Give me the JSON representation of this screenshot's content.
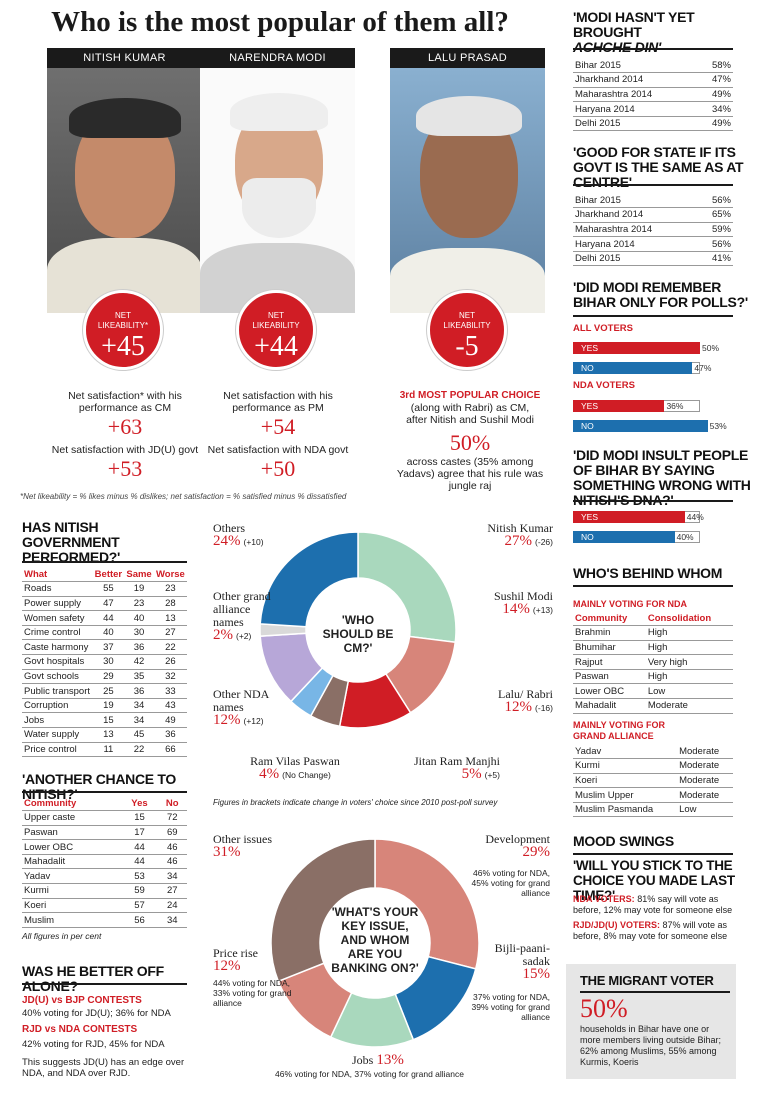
{
  "title": "Who is the most popular of them all?",
  "leaders": [
    {
      "name": "NITISH KUMAR",
      "like_label_1": "NET",
      "like_label_2": "LIKEABILITY*",
      "like_value": "+45",
      "sat1_text": "Net satisfaction* with his performance as CM",
      "sat1_value": "+63",
      "sat2_text": "Net satisfaction with JD(U) govt",
      "sat2_value": "+53"
    },
    {
      "name": "NARENDRA MODI",
      "like_label_1": "NET",
      "like_label_2": "LIKEABILITY",
      "like_value": "+44",
      "sat1_text": "Net satisfaction with his performance as PM",
      "sat1_value": "+54",
      "sat2_text": "Net satisfaction with NDA govt",
      "sat2_value": "+50"
    },
    {
      "name": "LALU PRASAD",
      "like_label_1": "NET",
      "like_label_2": "LIKEABILITY",
      "like_value": "-5",
      "choice_red": "3rd MOST POPULAR CHOICE",
      "choice_text": "(along with Rabri) as CM, after Nitish and Sushil Modi",
      "pct": "50%",
      "pct_text": "across castes (35% among Yadavs) agree that his rule was jungle raj"
    }
  ],
  "footnote": "*Net likeability = % likes minus % dislikes; net satisfaction = % satisfied minus % dissatisfied",
  "performed": {
    "title": "HAS NITISH GOVERNMENT PERFORMED?'",
    "headers": [
      "What",
      "Better",
      "Same",
      "Worse"
    ],
    "rows": [
      [
        "Roads",
        "55",
        "19",
        "23"
      ],
      [
        "Power supply",
        "47",
        "23",
        "28"
      ],
      [
        "Women safety",
        "44",
        "40",
        "13"
      ],
      [
        "Crime control",
        "40",
        "30",
        "27"
      ],
      [
        "Caste harmony",
        "37",
        "36",
        "22"
      ],
      [
        "Govt hospitals",
        "30",
        "42",
        "26"
      ],
      [
        "Govt schools",
        "29",
        "35",
        "32"
      ],
      [
        "Public transport",
        "25",
        "36",
        "33"
      ],
      [
        "Corruption",
        "19",
        "34",
        "43"
      ],
      [
        "Jobs",
        "15",
        "34",
        "49"
      ],
      [
        "Water supply",
        "13",
        "45",
        "36"
      ],
      [
        "Price control",
        "11",
        "22",
        "66"
      ]
    ]
  },
  "another_chance": {
    "title": "'ANOTHER CHANCE TO NITISH?'",
    "headers": [
      "Community",
      "Yes",
      "No"
    ],
    "rows": [
      [
        "Upper caste",
        "15",
        "72"
      ],
      [
        "Paswan",
        "17",
        "69"
      ],
      [
        "Lower OBC",
        "44",
        "46"
      ],
      [
        "Mahadalit",
        "44",
        "46"
      ],
      [
        "Yadav",
        "53",
        "34"
      ],
      [
        "Kurmi",
        "59",
        "27"
      ],
      [
        "Koeri",
        "57",
        "24"
      ],
      [
        "Muslim",
        "56",
        "34"
      ]
    ],
    "note": "All figures in per cent"
  },
  "better_alone": {
    "title": "WAS HE BETTER OFF ALONE?",
    "c1_label": "JD(U) vs BJP CONTESTS",
    "c1_text": "40% voting for JD(U); 36% for NDA",
    "c2_label": "RJD vs NDA CONTESTS",
    "c2_text": "42% voting for RJD, 45% for NDA",
    "conclusion": "This suggests JD(U) has an edge over NDA, and NDA over RJD."
  },
  "cm_note": "Figures in brackets indicate change in voters' choice since 2010 post-poll survey",
  "issue_labels": {
    "other": {
      "name": "Other issues",
      "pct": "31%"
    },
    "dev": {
      "name": "Development",
      "pct": "29%",
      "note": "46% voting for NDA, 45% voting for grand alliance"
    },
    "bijli1": "Bijli-paani-",
    "bijli2": "sadak",
    "bijli_pct": "15%",
    "bijli_note": "37% voting for NDA, 39% voting for grand alliance",
    "jobs": "Jobs",
    "jobs_pct": "13%",
    "jobs_note": "46% voting for NDA, 37% voting for grand alliance",
    "price": "Price rise",
    "price_pct": "12%",
    "price_note": "44% voting for NDA, 33% voting for grand alliance"
  },
  "chart_data": [
    {
      "type": "pie",
      "title": "'WHO SHOULD BE CM?'",
      "slices": [
        {
          "label": "Nitish Kumar",
          "value": 27,
          "change": "(-26)",
          "color": "#a9d8bd"
        },
        {
          "label": "Sushil Modi",
          "value": 14,
          "change": "(+13)",
          "color": "#d7857a"
        },
        {
          "label": "Lalu/ Rabri",
          "value": 12,
          "change": "(-16)",
          "color": "#d01d25"
        },
        {
          "label": "Jitan Ram Manjhi",
          "value": 5,
          "change": "(+5)",
          "color": "#8a6f66"
        },
        {
          "label": "Ram Vilas Paswan",
          "value": 4,
          "change": "(No Change)",
          "color": "#78b6e6"
        },
        {
          "label": "Other NDA names",
          "value": 12,
          "change": "(+12)",
          "color": "#b7a7d8"
        },
        {
          "label": "Other grand alliance names",
          "value": 2,
          "change": "(+2)",
          "color": "#d9d9d9"
        },
        {
          "label": "Others",
          "value": 24,
          "change": "(+10)",
          "color": "#1d6fae"
        }
      ]
    },
    {
      "type": "pie",
      "title": "'WHAT'S YOUR KEY ISSUE, AND WHOM ARE YOU BANKING ON?'",
      "slices": [
        {
          "label": "Development",
          "value": 29,
          "color": "#d7857a"
        },
        {
          "label": "Bijli-paani-sadak",
          "value": 15,
          "color": "#1d6fae"
        },
        {
          "label": "Jobs",
          "value": 13,
          "color": "#a9d8bd"
        },
        {
          "label": "Price rise",
          "value": 12,
          "color": "#d7857a"
        },
        {
          "label": "Other issues",
          "value": 31,
          "color": "#8a6f66"
        }
      ]
    },
    {
      "type": "bar",
      "title": "'DID MODI REMEMBER BIHAR ONLY FOR POLLS?'",
      "groups": [
        {
          "label": "ALL VOTERS",
          "bars": [
            {
              "label": "YES",
              "value": 50,
              "color": "#d01d25"
            },
            {
              "label": "NO",
              "value": 47,
              "color": "#1d6fae"
            }
          ]
        },
        {
          "label": "NDA VOTERS",
          "bars": [
            {
              "label": "YES",
              "value": 36,
              "color": "#d01d25"
            },
            {
              "label": "NO",
              "value": 53,
              "color": "#1d6fae"
            }
          ]
        }
      ]
    },
    {
      "type": "bar",
      "title": "'DID MODI INSULT PEOPLE OF BIHAR BY SAYING SOMETHING WRONG WITH NITISH'S DNA?'",
      "groups": [
        {
          "label": "",
          "bars": [
            {
              "label": "YES",
              "value": 44,
              "color": "#d01d25"
            },
            {
              "label": "NO",
              "value": 40,
              "color": "#1d6fae"
            }
          ]
        }
      ]
    }
  ],
  "achche": {
    "title1": "'MODI HASN'T YET BROUGHT",
    "title2": "ACHCHE DIN'",
    "rows": [
      [
        "Bihar 2015",
        "58%"
      ],
      [
        "Jharkhand 2014",
        "47%"
      ],
      [
        "Maharashtra 2014",
        "49%"
      ],
      [
        "Haryana 2014",
        "34%"
      ],
      [
        "Delhi 2015",
        "49%"
      ]
    ]
  },
  "good_state": {
    "title": "'GOOD FOR STATE IF ITS GOVT IS THE SAME AS AT CENTRE'",
    "rows": [
      [
        "Bihar 2015",
        "56%"
      ],
      [
        "Jharkhand 2014",
        "65%"
      ],
      [
        "Maharashtra 2014",
        "59%"
      ],
      [
        "Haryana 2014",
        "56%"
      ],
      [
        "Delhi 2015",
        "41%"
      ]
    ]
  },
  "behind": {
    "title": "WHO'S BEHIND WHOM",
    "nda_label": "MAINLY VOTING FOR NDA",
    "headers": [
      "Community",
      "Consolidation"
    ],
    "nda_rows": [
      [
        "Brahmin",
        "High"
      ],
      [
        "Bhumihar",
        "High"
      ],
      [
        "Rajput",
        "Very high"
      ],
      [
        "Paswan",
        "High"
      ],
      [
        "Lower OBC",
        "Low"
      ],
      [
        "Mahadalit",
        "Moderate"
      ]
    ],
    "ga_label1": "MAINLY VOTING FOR",
    "ga_label2": "GRAND ALLIANCE",
    "ga_rows": [
      [
        "Yadav",
        "Moderate"
      ],
      [
        "Kurmi",
        "Moderate"
      ],
      [
        "Koeri",
        "Moderate"
      ],
      [
        "Muslim Upper",
        "Moderate"
      ],
      [
        "Muslim Pasmanda",
        "Low"
      ]
    ]
  },
  "mood": {
    "title": "MOOD SWINGS",
    "q": "'WILL YOU STICK TO THE CHOICE YOU MADE LAST TIME?'",
    "nda_label": "NDA VOTERS:",
    "nda_text": "81% say will vote as before, 12% may vote for someone else",
    "rjd_label": "RJD/JD(U) VOTERS:",
    "rjd_text": "87% will vote as before, 8% may vote for someone else"
  },
  "migrant": {
    "title": "THE MIGRANT VOTER",
    "pct": "50%",
    "text": "households in Bihar have one or more members living outside Bihar; 62% among Muslims, 55% among Kurmis, Koeris"
  }
}
